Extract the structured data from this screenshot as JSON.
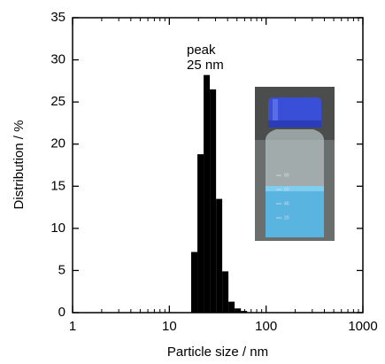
{
  "chart_data": {
    "type": "histogram",
    "xlabel": "Particle size / nm",
    "ylabel": "Distribution / %",
    "annotation": [
      "peak",
      "25 nm"
    ],
    "bins": [
      16.8,
      19.5,
      22.6,
      26.2,
      30.4,
      35.2,
      40.8,
      47.3,
      54.9,
      63.6
    ],
    "values": [
      7.2,
      18.8,
      28.2,
      26.5,
      13.5,
      4.9,
      1.3,
      0.5,
      0.2
    ],
    "color": "#000000",
    "xlog": true,
    "xlim": [
      1,
      1000
    ],
    "xticks": [
      1,
      10,
      100,
      1000
    ],
    "xminorticks": [
      2,
      3,
      4,
      5,
      6,
      7,
      8,
      9,
      20,
      30,
      40,
      50,
      60,
      70,
      80,
      90,
      200,
      300,
      400,
      500,
      600,
      700,
      800,
      900
    ],
    "ylim": [
      0,
      35
    ],
    "yticks": [
      0,
      5,
      10,
      15,
      20,
      25,
      30,
      35
    ],
    "grid": false
  },
  "inset_labels": [
    "80",
    "60",
    "40",
    "20"
  ]
}
